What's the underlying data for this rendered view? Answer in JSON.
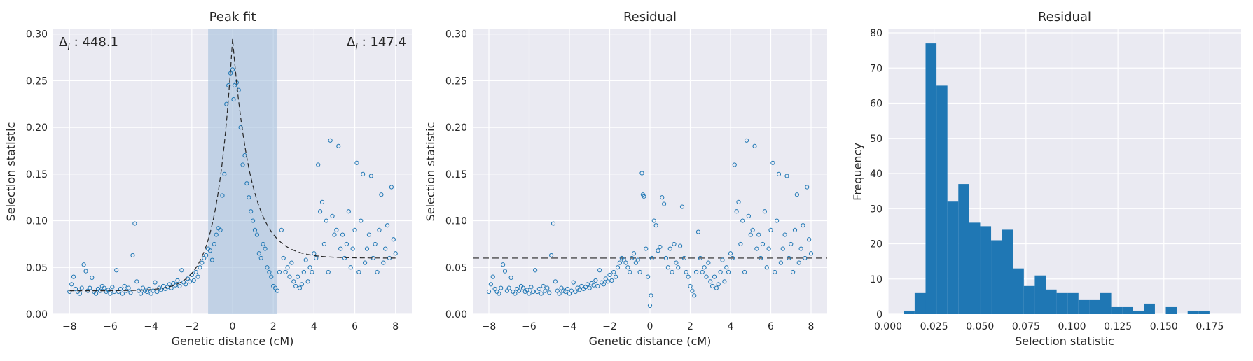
{
  "chart_data": [
    {
      "type": "scatter",
      "title": "Peak fit",
      "xlabel": "Genetic distance (cM)",
      "ylabel": "Selection statistic",
      "xlim": [
        -8.8,
        8.8
      ],
      "ylim": [
        0,
        0.305
      ],
      "xticks": [
        -8,
        -6,
        -4,
        -2,
        0,
        2,
        4,
        6,
        8
      ],
      "yticks": [
        0.0,
        0.05,
        0.1,
        0.15,
        0.2,
        0.25,
        0.3
      ],
      "grid": true,
      "shaded_region": [
        -1.2,
        2.2
      ],
      "fit_curve": {
        "style": "dashed",
        "baseline_left": 0.025,
        "baseline_right": 0.06,
        "peak_x": 0,
        "peak_y": 0.295
      },
      "annotations": [
        {
          "text": "Δ",
          "sub": "i",
          "value": " : 448.1",
          "position": "top-left"
        },
        {
          "text": "Δ",
          "sub": "i",
          "value": " : 147.4",
          "position": "top-right"
        }
      ],
      "points_description": "scatter of selection statistic vs genetic distance",
      "points": [
        [
          -8.0,
          0.024
        ],
        [
          -7.9,
          0.032
        ],
        [
          -7.8,
          0.04
        ],
        [
          -7.7,
          0.027
        ],
        [
          -7.6,
          0.024
        ],
        [
          -7.5,
          0.022
        ],
        [
          -7.4,
          0.028
        ],
        [
          -7.3,
          0.053
        ],
        [
          -7.2,
          0.046
        ],
        [
          -7.1,
          0.025
        ],
        [
          -7.0,
          0.028
        ],
        [
          -6.9,
          0.039
        ],
        [
          -6.8,
          0.024
        ],
        [
          -6.7,
          0.022
        ],
        [
          -6.6,
          0.027
        ],
        [
          -6.5,
          0.025
        ],
        [
          -6.4,
          0.03
        ],
        [
          -6.3,
          0.028
        ],
        [
          -6.2,
          0.024
        ],
        [
          -6.1,
          0.026
        ],
        [
          -6.0,
          0.022
        ],
        [
          -5.9,
          0.029
        ],
        [
          -5.8,
          0.024
        ],
        [
          -5.7,
          0.047
        ],
        [
          -5.6,
          0.024
        ],
        [
          -5.5,
          0.027
        ],
        [
          -5.4,
          0.022
        ],
        [
          -5.3,
          0.03
        ],
        [
          -5.2,
          0.025
        ],
        [
          -5.1,
          0.028
        ],
        [
          -5.0,
          0.023
        ],
        [
          -4.9,
          0.063
        ],
        [
          -4.8,
          0.097
        ],
        [
          -4.7,
          0.035
        ],
        [
          -4.6,
          0.025
        ],
        [
          -4.5,
          0.022
        ],
        [
          -4.4,
          0.028
        ],
        [
          -4.3,
          0.025
        ],
        [
          -4.2,
          0.024
        ],
        [
          -4.1,
          0.027
        ],
        [
          -4.0,
          0.022
        ],
        [
          -3.9,
          0.025
        ],
        [
          -3.8,
          0.034
        ],
        [
          -3.7,
          0.024
        ],
        [
          -3.6,
          0.028
        ],
        [
          -3.5,
          0.026
        ],
        [
          -3.4,
          0.03
        ],
        [
          -3.3,
          0.027
        ],
        [
          -3.2,
          0.029
        ],
        [
          -3.1,
          0.032
        ],
        [
          -3.0,
          0.028
        ],
        [
          -2.9,
          0.033
        ],
        [
          -2.8,
          0.031
        ],
        [
          -2.7,
          0.036
        ],
        [
          -2.6,
          0.03
        ],
        [
          -2.5,
          0.047
        ],
        [
          -2.4,
          0.034
        ],
        [
          -2.3,
          0.032
        ],
        [
          -2.2,
          0.038
        ],
        [
          -2.1,
          0.035
        ],
        [
          -2.0,
          0.042
        ],
        [
          -1.9,
          0.036
        ],
        [
          -1.8,
          0.045
        ],
        [
          -1.7,
          0.04
        ],
        [
          -1.6,
          0.05
        ],
        [
          -1.5,
          0.055
        ],
        [
          -1.4,
          0.06
        ],
        [
          -1.3,
          0.063
        ],
        [
          -1.2,
          0.07
        ],
        [
          -1.1,
          0.068
        ],
        [
          -1.0,
          0.058
        ],
        [
          -0.9,
          0.075
        ],
        [
          -0.8,
          0.085
        ],
        [
          -0.7,
          0.092
        ],
        [
          -0.6,
          0.09
        ],
        [
          -0.5,
          0.127
        ],
        [
          -0.4,
          0.15
        ],
        [
          -0.3,
          0.225
        ],
        [
          -0.2,
          0.245
        ],
        [
          -0.1,
          0.258
        ],
        [
          0.0,
          0.262
        ],
        [
          0.05,
          0.23
        ],
        [
          0.1,
          0.245
        ],
        [
          0.2,
          0.248
        ],
        [
          0.3,
          0.24
        ],
        [
          0.4,
          0.2
        ],
        [
          0.5,
          0.16
        ],
        [
          0.6,
          0.17
        ],
        [
          0.7,
          0.14
        ],
        [
          0.8,
          0.125
        ],
        [
          0.9,
          0.11
        ],
        [
          1.0,
          0.1
        ],
        [
          1.1,
          0.09
        ],
        [
          1.2,
          0.085
        ],
        [
          1.3,
          0.065
        ],
        [
          1.4,
          0.06
        ],
        [
          1.5,
          0.075
        ],
        [
          1.6,
          0.07
        ],
        [
          1.7,
          0.05
        ],
        [
          1.8,
          0.045
        ],
        [
          1.9,
          0.04
        ],
        [
          2.0,
          0.03
        ],
        [
          2.1,
          0.028
        ],
        [
          2.2,
          0.025
        ],
        [
          2.3,
          0.045
        ],
        [
          2.4,
          0.09
        ],
        [
          2.5,
          0.06
        ],
        [
          2.6,
          0.045
        ],
        [
          2.7,
          0.05
        ],
        [
          2.8,
          0.04
        ],
        [
          2.9,
          0.055
        ],
        [
          3.0,
          0.035
        ],
        [
          3.1,
          0.03
        ],
        [
          3.2,
          0.04
        ],
        [
          3.3,
          0.028
        ],
        [
          3.4,
          0.032
        ],
        [
          3.5,
          0.045
        ],
        [
          3.6,
          0.058
        ],
        [
          3.7,
          0.035
        ],
        [
          3.8,
          0.05
        ],
        [
          3.9,
          0.045
        ],
        [
          4.0,
          0.065
        ],
        [
          4.1,
          0.06
        ],
        [
          4.2,
          0.16
        ],
        [
          4.3,
          0.11
        ],
        [
          4.4,
          0.12
        ],
        [
          4.5,
          0.075
        ],
        [
          4.6,
          0.1
        ],
        [
          4.7,
          0.045
        ],
        [
          4.8,
          0.186
        ],
        [
          4.9,
          0.105
        ],
        [
          5.0,
          0.085
        ],
        [
          5.1,
          0.09
        ],
        [
          5.2,
          0.18
        ],
        [
          5.3,
          0.07
        ],
        [
          5.4,
          0.085
        ],
        [
          5.5,
          0.06
        ],
        [
          5.6,
          0.075
        ],
        [
          5.7,
          0.11
        ],
        [
          5.8,
          0.05
        ],
        [
          5.9,
          0.07
        ],
        [
          6.0,
          0.09
        ],
        [
          6.1,
          0.162
        ],
        [
          6.2,
          0.045
        ],
        [
          6.3,
          0.1
        ],
        [
          6.4,
          0.15
        ],
        [
          6.5,
          0.055
        ],
        [
          6.6,
          0.07
        ],
        [
          6.7,
          0.085
        ],
        [
          6.8,
          0.148
        ],
        [
          6.9,
          0.06
        ],
        [
          7.0,
          0.075
        ],
        [
          7.1,
          0.045
        ],
        [
          7.2,
          0.09
        ],
        [
          7.3,
          0.128
        ],
        [
          7.4,
          0.055
        ],
        [
          7.5,
          0.07
        ],
        [
          7.6,
          0.095
        ],
        [
          7.7,
          0.06
        ],
        [
          7.8,
          0.136
        ],
        [
          7.9,
          0.08
        ],
        [
          8.0,
          0.065
        ]
      ]
    },
    {
      "type": "scatter",
      "title": "Residual",
      "xlabel": "Genetic distance (cM)",
      "ylabel": "Selection statistic",
      "xlim": [
        -8.8,
        8.8
      ],
      "ylim": [
        0,
        0.305
      ],
      "xticks": [
        -8,
        -6,
        -4,
        -2,
        0,
        2,
        4,
        6,
        8
      ],
      "yticks": [
        0.0,
        0.05,
        0.1,
        0.15,
        0.2,
        0.25,
        0.3
      ],
      "grid": true,
      "hline": {
        "y": 0.06,
        "style": "dashed"
      },
      "points": [
        [
          -8.0,
          0.024
        ],
        [
          -7.9,
          0.032
        ],
        [
          -7.8,
          0.04
        ],
        [
          -7.7,
          0.027
        ],
        [
          -7.6,
          0.024
        ],
        [
          -7.5,
          0.022
        ],
        [
          -7.4,
          0.028
        ],
        [
          -7.3,
          0.053
        ],
        [
          -7.2,
          0.046
        ],
        [
          -7.1,
          0.025
        ],
        [
          -7.0,
          0.028
        ],
        [
          -6.9,
          0.039
        ],
        [
          -6.8,
          0.024
        ],
        [
          -6.7,
          0.022
        ],
        [
          -6.6,
          0.027
        ],
        [
          -6.5,
          0.025
        ],
        [
          -6.4,
          0.03
        ],
        [
          -6.3,
          0.028
        ],
        [
          -6.2,
          0.024
        ],
        [
          -6.1,
          0.026
        ],
        [
          -6.0,
          0.022
        ],
        [
          -5.9,
          0.029
        ],
        [
          -5.8,
          0.024
        ],
        [
          -5.7,
          0.047
        ],
        [
          -5.6,
          0.024
        ],
        [
          -5.5,
          0.027
        ],
        [
          -5.4,
          0.022
        ],
        [
          -5.3,
          0.03
        ],
        [
          -5.2,
          0.025
        ],
        [
          -5.1,
          0.028
        ],
        [
          -5.0,
          0.023
        ],
        [
          -4.9,
          0.063
        ],
        [
          -4.8,
          0.097
        ],
        [
          -4.7,
          0.035
        ],
        [
          -4.6,
          0.025
        ],
        [
          -4.5,
          0.022
        ],
        [
          -4.4,
          0.028
        ],
        [
          -4.3,
          0.025
        ],
        [
          -4.2,
          0.024
        ],
        [
          -4.1,
          0.027
        ],
        [
          -4.0,
          0.022
        ],
        [
          -3.9,
          0.025
        ],
        [
          -3.8,
          0.034
        ],
        [
          -3.7,
          0.024
        ],
        [
          -3.6,
          0.028
        ],
        [
          -3.5,
          0.026
        ],
        [
          -3.4,
          0.03
        ],
        [
          -3.3,
          0.027
        ],
        [
          -3.2,
          0.029
        ],
        [
          -3.1,
          0.032
        ],
        [
          -3.0,
          0.028
        ],
        [
          -2.9,
          0.033
        ],
        [
          -2.8,
          0.031
        ],
        [
          -2.7,
          0.036
        ],
        [
          -2.6,
          0.03
        ],
        [
          -2.5,
          0.047
        ],
        [
          -2.4,
          0.034
        ],
        [
          -2.3,
          0.032
        ],
        [
          -2.2,
          0.038
        ],
        [
          -2.1,
          0.035
        ],
        [
          -2.0,
          0.042
        ],
        [
          -1.9,
          0.036
        ],
        [
          -1.8,
          0.045
        ],
        [
          -1.7,
          0.04
        ],
        [
          -1.6,
          0.05
        ],
        [
          -1.5,
          0.055
        ],
        [
          -1.4,
          0.06
        ],
        [
          -1.3,
          0.058
        ],
        [
          -1.2,
          0.055
        ],
        [
          -1.1,
          0.05
        ],
        [
          -1.0,
          0.045
        ],
        [
          -0.9,
          0.06
        ],
        [
          -0.8,
          0.065
        ],
        [
          -0.7,
          0.055
        ],
        [
          -0.6,
          0.058
        ],
        [
          -0.5,
          0.045
        ],
        [
          -0.4,
          0.151
        ],
        [
          -0.35,
          0.128
        ],
        [
          -0.3,
          0.126
        ],
        [
          -0.2,
          0.07
        ],
        [
          -0.1,
          0.04
        ],
        [
          0.0,
          0.009
        ],
        [
          0.05,
          0.02
        ],
        [
          0.1,
          0.06
        ],
        [
          0.2,
          0.1
        ],
        [
          0.3,
          0.095
        ],
        [
          0.4,
          0.068
        ],
        [
          0.5,
          0.072
        ],
        [
          0.6,
          0.125
        ],
        [
          0.7,
          0.118
        ],
        [
          0.8,
          0.06
        ],
        [
          0.9,
          0.05
        ],
        [
          1.0,
          0.07
        ],
        [
          1.1,
          0.045
        ],
        [
          1.2,
          0.075
        ],
        [
          1.3,
          0.055
        ],
        [
          1.4,
          0.05
        ],
        [
          1.5,
          0.073
        ],
        [
          1.6,
          0.115
        ],
        [
          1.7,
          0.06
        ],
        [
          1.8,
          0.045
        ],
        [
          1.9,
          0.04
        ],
        [
          2.0,
          0.03
        ],
        [
          2.1,
          0.025
        ],
        [
          2.2,
          0.02
        ],
        [
          2.3,
          0.045
        ],
        [
          2.4,
          0.088
        ],
        [
          2.5,
          0.06
        ],
        [
          2.6,
          0.045
        ],
        [
          2.7,
          0.05
        ],
        [
          2.8,
          0.04
        ],
        [
          2.9,
          0.055
        ],
        [
          3.0,
          0.035
        ],
        [
          3.1,
          0.03
        ],
        [
          3.2,
          0.04
        ],
        [
          3.3,
          0.028
        ],
        [
          3.4,
          0.032
        ],
        [
          3.5,
          0.045
        ],
        [
          3.6,
          0.058
        ],
        [
          3.7,
          0.035
        ],
        [
          3.8,
          0.05
        ],
        [
          3.9,
          0.045
        ],
        [
          4.0,
          0.065
        ],
        [
          4.1,
          0.06
        ],
        [
          4.2,
          0.16
        ],
        [
          4.3,
          0.11
        ],
        [
          4.4,
          0.12
        ],
        [
          4.5,
          0.075
        ],
        [
          4.6,
          0.1
        ],
        [
          4.7,
          0.045
        ],
        [
          4.8,
          0.186
        ],
        [
          4.9,
          0.105
        ],
        [
          5.0,
          0.085
        ],
        [
          5.1,
          0.09
        ],
        [
          5.2,
          0.18
        ],
        [
          5.3,
          0.07
        ],
        [
          5.4,
          0.085
        ],
        [
          5.5,
          0.06
        ],
        [
          5.6,
          0.075
        ],
        [
          5.7,
          0.11
        ],
        [
          5.8,
          0.05
        ],
        [
          5.9,
          0.07
        ],
        [
          6.0,
          0.09
        ],
        [
          6.1,
          0.162
        ],
        [
          6.2,
          0.045
        ],
        [
          6.3,
          0.1
        ],
        [
          6.4,
          0.15
        ],
        [
          6.5,
          0.055
        ],
        [
          6.6,
          0.07
        ],
        [
          6.7,
          0.085
        ],
        [
          6.8,
          0.148
        ],
        [
          6.9,
          0.06
        ],
        [
          7.0,
          0.075
        ],
        [
          7.1,
          0.045
        ],
        [
          7.2,
          0.09
        ],
        [
          7.3,
          0.128
        ],
        [
          7.4,
          0.055
        ],
        [
          7.5,
          0.07
        ],
        [
          7.6,
          0.095
        ],
        [
          7.7,
          0.06
        ],
        [
          7.8,
          0.136
        ],
        [
          7.9,
          0.08
        ],
        [
          8.0,
          0.065
        ]
      ]
    },
    {
      "type": "bar",
      "subtype": "histogram",
      "title": "Residual",
      "xlabel": "Selection statistic",
      "ylabel": "Frequency",
      "xlim": [
        0.0,
        0.192
      ],
      "ylim": [
        0,
        81
      ],
      "xticks": [
        "0.000",
        "0.025",
        "0.050",
        "0.075",
        "0.100",
        "0.125",
        "0.150",
        "0.175"
      ],
      "xtick_values": [
        0.0,
        0.025,
        0.05,
        0.075,
        0.1,
        0.125,
        0.15,
        0.175
      ],
      "yticks": [
        0,
        10,
        20,
        30,
        40,
        50,
        60,
        70,
        80
      ],
      "grid": true,
      "bin_start": 0.0085,
      "bin_width": 0.00594,
      "values": [
        1,
        6,
        77,
        65,
        32,
        37,
        26,
        25,
        21,
        24,
        13,
        8,
        11,
        7,
        6,
        6,
        4,
        4,
        6,
        2,
        2,
        1,
        3,
        0,
        2,
        0,
        1,
        1
      ]
    }
  ],
  "colors": {
    "background": "#eaeaf2",
    "grid": "#ffffff",
    "marker": "#1f77b4",
    "shade": "#9ebcda",
    "text": "#262626"
  }
}
